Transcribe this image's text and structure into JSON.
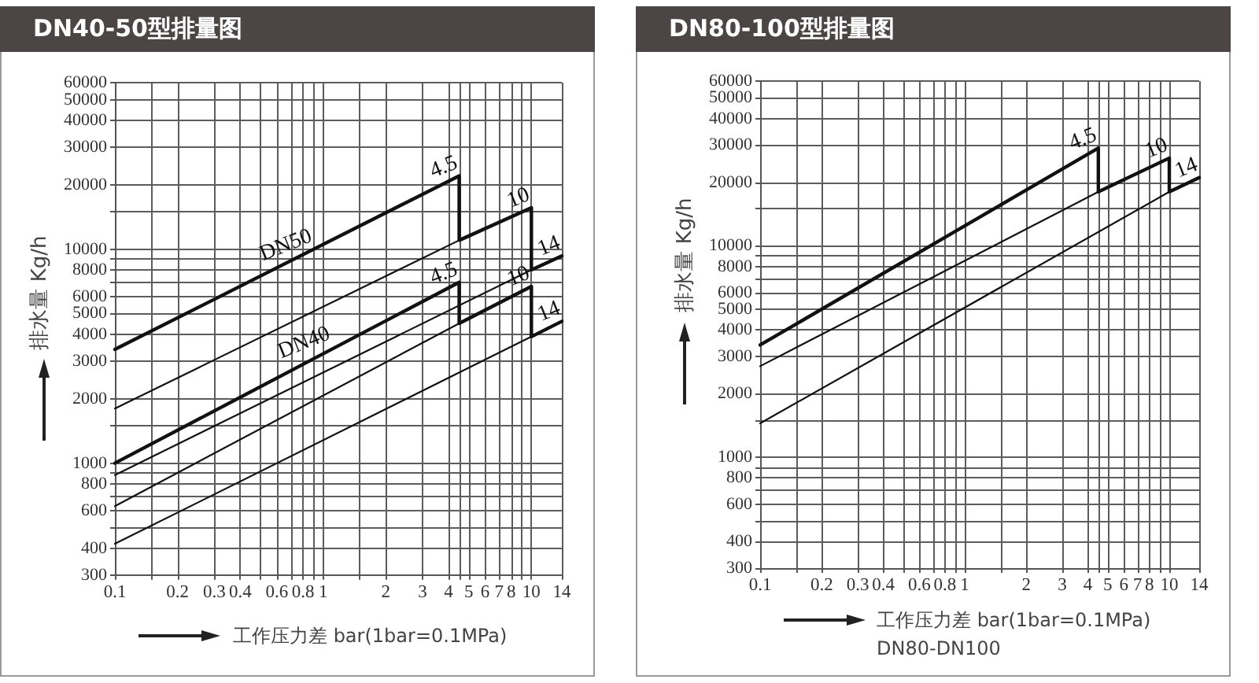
{
  "chart_data": [
    {
      "type": "line",
      "title": "DN40-50型排量图",
      "xlabel": "工作压力差 bar(1bar=0.1MPa)",
      "ylabel": "排水量 Kg/h",
      "log": "xy",
      "grid": true,
      "xlim": [
        0.1,
        14
      ],
      "xticks": [
        0.1,
        {
          "value": 0.15,
          "label": null
        },
        0.2,
        0.3,
        0.4,
        {
          "value": 0.5,
          "label": null
        },
        0.6,
        {
          "value": 0.7,
          "label": null
        },
        0.8,
        {
          "value": 0.9,
          "label": null
        },
        1,
        {
          "value": 1.5,
          "label": null
        },
        2,
        3,
        4,
        {
          "value": 4.5,
          "label": null
        },
        5,
        6,
        7,
        8,
        {
          "value": 9,
          "label": null
        },
        10,
        14
      ],
      "ylim": [
        300,
        60000
      ],
      "yticks": [
        300,
        400,
        {
          "value": 500,
          "label": null
        },
        600,
        {
          "value": 700,
          "label": null
        },
        800,
        {
          "value": 900,
          "label": null
        },
        1000,
        {
          "value": 1500,
          "label": null
        },
        2000,
        3000,
        4000,
        5000,
        6000,
        {
          "value": 7000,
          "label": null
        },
        8000,
        {
          "value": 9000,
          "label": null
        },
        10000,
        {
          "value": 15000,
          "label": null
        },
        20000,
        30000,
        40000,
        50000,
        60000
      ],
      "series": [
        {
          "color": "#111111",
          "x": [
            0.1,
            4.5,
            4.5,
            10,
            10,
            14
          ],
          "values": [
            3400,
            22000,
            11000,
            15600,
            8000,
            9300
          ]
        },
        {
          "color": "#111111",
          "x": [
            0.1,
            4.5
          ],
          "values": [
            1800,
            11000
          ]
        },
        {
          "color": "#111111",
          "x": [
            0.1,
            10
          ],
          "values": [
            880,
            8000
          ]
        },
        {
          "color": "#111111",
          "x": [
            0.1,
            4.5,
            4.5,
            10,
            10,
            14
          ],
          "values": [
            1000,
            7000,
            4500,
            6700,
            3900,
            4600
          ]
        },
        {
          "color": "#111111",
          "x": [
            0.1,
            4.5
          ],
          "values": [
            630,
            4500
          ]
        },
        {
          "color": "#111111",
          "x": [
            0.1,
            10
          ],
          "values": [
            420,
            3900
          ]
        }
      ],
      "annotations": [
        {
          "text": "4.5",
          "x": 4.5,
          "y": 22000
        },
        {
          "text": "10",
          "x": 10,
          "y": 15600
        },
        {
          "text": "14",
          "x": 14,
          "y": 9300
        },
        {
          "text": "DN50",
          "x": 0.9,
          "y": 10000
        },
        {
          "text": "4.5",
          "x": 4.5,
          "y": 7000
        },
        {
          "text": "10",
          "x": 10,
          "y": 6700
        },
        {
          "text": "14",
          "x": 14,
          "y": 4600
        },
        {
          "text": "DN40",
          "x": 1.1,
          "y": 3500
        }
      ]
    },
    {
      "type": "line",
      "title": "DN80-100型排量图",
      "xlabel": "工作压力差 bar(1bar=0.1MPa)",
      "ylabel": "排水量 Kg/h",
      "log": "xy",
      "grid": true,
      "xlim": [
        0.1,
        14
      ],
      "xticks": [
        0.1,
        {
          "value": 0.15,
          "label": null
        },
        0.2,
        0.3,
        0.4,
        {
          "value": 0.5,
          "label": null
        },
        0.6,
        {
          "value": 0.7,
          "label": null
        },
        0.8,
        {
          "value": 0.9,
          "label": null
        },
        1,
        {
          "value": 1.5,
          "label": null
        },
        2,
        3,
        4,
        {
          "value": 4.5,
          "label": null
        },
        5,
        6,
        7,
        8,
        {
          "value": 9,
          "label": null
        },
        10,
        14
      ],
      "ylim": [
        300,
        60000
      ],
      "yticks": [
        300,
        400,
        {
          "value": 500,
          "label": null
        },
        600,
        {
          "value": 700,
          "label": null
        },
        800,
        {
          "value": 900,
          "label": null
        },
        1000,
        {
          "value": 1500,
          "label": null
        },
        2000,
        3000,
        4000,
        5000,
        6000,
        {
          "value": 7000,
          "label": null
        },
        8000,
        {
          "value": 9000,
          "label": null
        },
        10000,
        {
          "value": 15000,
          "label": null
        },
        20000,
        30000,
        40000,
        50000,
        60000
      ],
      "series": [
        {
          "color": "#111111",
          "x": [
            0.1,
            4.5,
            4.5,
            10,
            10,
            14
          ],
          "values": [
            3400,
            29000,
            18000,
            26000,
            18000,
            21000
          ]
        },
        {
          "color": "#111111",
          "x": [
            0.1,
            4.5
          ],
          "values": [
            2700,
            18000
          ]
        },
        {
          "color": "#111111",
          "x": [
            0.1,
            10
          ],
          "values": [
            1450,
            18000
          ]
        }
      ],
      "annotations": [
        {
          "text": "4.5",
          "x": 4.5,
          "y": 29000
        },
        {
          "text": "10",
          "x": 10,
          "y": 26000
        },
        {
          "text": "14",
          "x": 14,
          "y": 21000
        },
        "DN80-DN100"
      ]
    }
  ]
}
